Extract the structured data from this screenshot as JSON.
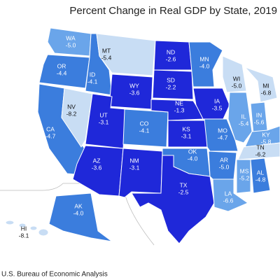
{
  "title": "Percent Change in Real GDP by State, 2019",
  "source": "U.S. Bureau of Economic Analysis",
  "states": [
    {
      "abbr": "WA",
      "value": "-5.0",
      "color": "#6aa5ea"
    },
    {
      "abbr": "OR",
      "value": "-4.4",
      "color": "#3b7ddd"
    },
    {
      "abbr": "CA",
      "value": "-4.7",
      "color": "#3b7ddd"
    },
    {
      "abbr": "NV",
      "value": "-8.2",
      "color": "#c8ddf4"
    },
    {
      "abbr": "ID",
      "value": "-4.1",
      "color": "#3b7ddd"
    },
    {
      "abbr": "MT",
      "value": "-5.4",
      "color": "#c8ddf4"
    },
    {
      "abbr": "WY",
      "value": "-3.6",
      "color": "#1f28d9"
    },
    {
      "abbr": "UT",
      "value": "-3.1",
      "color": "#1f28d9"
    },
    {
      "abbr": "CO",
      "value": "-4.1",
      "color": "#3b7ddd"
    },
    {
      "abbr": "AZ",
      "value": "-3.6",
      "color": "#1f28d9"
    },
    {
      "abbr": "NM",
      "value": "-3.1",
      "color": "#1f28d9"
    },
    {
      "abbr": "ND",
      "value": "-2.6",
      "color": "#1f28d9"
    },
    {
      "abbr": "SD",
      "value": "-2.2",
      "color": "#1f28d9"
    },
    {
      "abbr": "NE",
      "value": "-1.3",
      "color": "#1f28d9"
    },
    {
      "abbr": "KS",
      "value": "-3.1",
      "color": "#1f28d9"
    },
    {
      "abbr": "OK",
      "value": "-4.0",
      "color": "#3b7ddd"
    },
    {
      "abbr": "TX",
      "value": "-2.5",
      "color": "#1f28d9"
    },
    {
      "abbr": "MN",
      "value": "-4.0",
      "color": "#3b7ddd"
    },
    {
      "abbr": "IA",
      "value": "-3.5",
      "color": "#1f28d9"
    },
    {
      "abbr": "MO",
      "value": "-4.7",
      "color": "#3b7ddd"
    },
    {
      "abbr": "AR",
      "value": "-5.0",
      "color": "#3b7ddd"
    },
    {
      "abbr": "LA",
      "value": "-6.6",
      "color": "#6aa5ea"
    },
    {
      "abbr": "WI",
      "value": "-5.0",
      "color": "#c8ddf4"
    },
    {
      "abbr": "IL",
      "value": "-5.4",
      "color": "#6aa5ea"
    },
    {
      "abbr": "MI",
      "value": "-6.8",
      "color": "#c8ddf4"
    },
    {
      "abbr": "IN",
      "value": "-5.6",
      "color": "#6aa5ea"
    },
    {
      "abbr": "KY",
      "value": "-5.8",
      "color": "#6aa5ea"
    },
    {
      "abbr": "TN",
      "value": "-6.2",
      "color": "#c8ddf4"
    },
    {
      "abbr": "MS",
      "value": "-5.2",
      "color": "#6aa5ea"
    },
    {
      "abbr": "AL",
      "value": "-4.8",
      "color": "#3b7ddd"
    },
    {
      "abbr": "AK",
      "value": "-4.0",
      "color": "#3b7ddd"
    },
    {
      "abbr": "HI",
      "value": "-8.1",
      "color": "#c8ddf4"
    }
  ]
}
